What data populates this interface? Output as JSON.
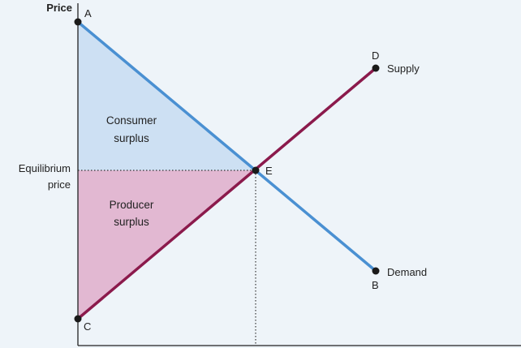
{
  "diagram": {
    "y_axis_title": "Price",
    "equilibrium_label": [
      "Equilibrium",
      "price"
    ],
    "consumer_surplus_label": [
      "Consumer",
      "surplus"
    ],
    "producer_surplus_label": [
      "Producer",
      "surplus"
    ],
    "supply_label": "Supply",
    "demand_label": "Demand",
    "points": {
      "A": "A",
      "B": "B",
      "C": "C",
      "D": "D",
      "E": "E"
    },
    "colors": {
      "background": "#eef4f9",
      "demand_line": "#4a90d2",
      "supply_line": "#8b1a4c",
      "consumer_surplus_fill": "#cde0f3",
      "producer_surplus_fill": "#e2b8d2",
      "axis": "#222222",
      "point": "#1a1a1a"
    }
  }
}
